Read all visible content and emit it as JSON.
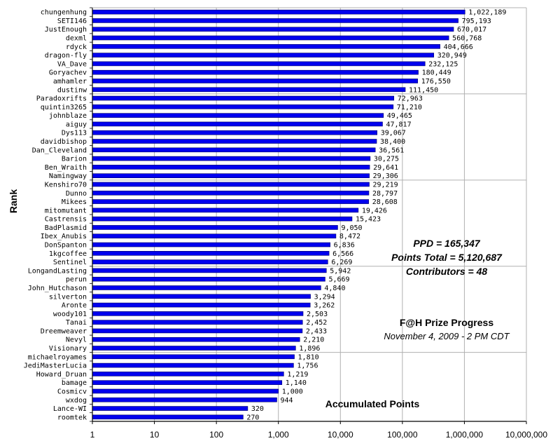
{
  "chart_data": {
    "type": "bar",
    "orientation": "horizontal",
    "x_scale": "log",
    "xlim": [
      1,
      10000000
    ],
    "x_ticks": [
      "1",
      "10",
      "100",
      "1,000",
      "10,000",
      "100,000",
      "1,000,000",
      "10,000,000"
    ],
    "ylabel": "Rank",
    "xlabel": "Accumulated Points",
    "title": "F@H Prize Progress",
    "subtitle": "November 4, 2009 - 2 PM CDT",
    "annotations": [
      "PPD = 165,347",
      "Points Total = 5,120,687",
      "Contributors = 48"
    ],
    "grid": true,
    "bar_color": "#0000ee",
    "categories": [
      "chungenhung",
      "SETI146",
      "JustEnough",
      "dexml",
      "rdyck",
      "dragon-fly",
      "VA_Dave",
      "Goryachev",
      "amhamler",
      "dustinw",
      "Paradoxrifts",
      "quintin3265",
      "johnblaze",
      "aiguy",
      "Dys113",
      "davidbishop",
      "Dan_Cleveland",
      "Barion",
      "Ben_Wraith",
      "Namingway",
      "Kenshiro70",
      "Dunno",
      "Mikees",
      "mitomutant",
      "Castrensis",
      "BadPlasmid",
      "Ibex_Anubis",
      "DonSpanton",
      "1kgcoffee",
      "Sentinel",
      "LongandLasting",
      "perun",
      "John_Hutchason",
      "silverton",
      "Aronte",
      "woody101",
      "Tanai",
      "Dreemweaver",
      "Nevyl",
      "Visionary",
      "michaelroyames",
      "JediMasterLucia",
      "Howard_Druan",
      "bamage",
      "Cosmicv",
      "wxdog",
      "Lance-WI",
      "roomtek"
    ],
    "values": [
      1022189,
      795193,
      670017,
      560768,
      404666,
      320949,
      232125,
      180449,
      176550,
      111450,
      72963,
      71210,
      49465,
      47817,
      39067,
      38400,
      36561,
      30275,
      29641,
      29306,
      29219,
      28797,
      28608,
      19426,
      15423,
      9050,
      8472,
      6836,
      6566,
      6269,
      5942,
      5669,
      4840,
      3294,
      3262,
      2503,
      2452,
      2433,
      2210,
      1896,
      1810,
      1756,
      1219,
      1140,
      1000,
      944,
      320,
      270
    ],
    "value_labels": [
      "1,022,189",
      "795,193",
      "670,017",
      "560,768",
      "404,666",
      "320,949",
      "232,125",
      "180,449",
      "176,550",
      "111,450",
      "72,963",
      "71,210",
      "49,465",
      "47,817",
      "39,067",
      "38,400",
      "36,561",
      "30,275",
      "29,641",
      "29,306",
      "29,219",
      "28,797",
      "28,608",
      "19,426",
      "15,423",
      "9,050",
      "8,472",
      "6,836",
      "6,566",
      "6,269",
      "5,942",
      "5,669",
      "4,840",
      "3,294",
      "3,262",
      "2,503",
      "2,452",
      "2,433",
      "2,210",
      "1,896",
      "1,810",
      "1,756",
      "1,219",
      "1,140",
      "1,000",
      "944",
      "320",
      "270"
    ]
  }
}
